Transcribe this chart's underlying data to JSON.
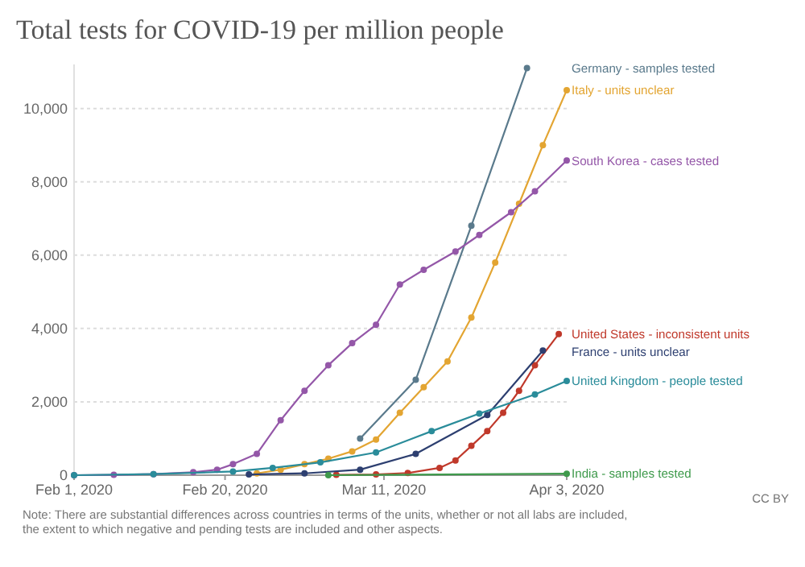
{
  "chart_data": {
    "type": "line",
    "title": "Total tests for COVID-19 per million people",
    "xlim": [
      "2020-02-01",
      "2020-04-03"
    ],
    "xticks": [
      {
        "value": "2020-02-01",
        "label": "Feb 1, 2020"
      },
      {
        "value": "2020-02-20",
        "label": "Feb 20, 2020"
      },
      {
        "value": "2020-03-11",
        "label": "Mar 11, 2020"
      },
      {
        "value": "2020-04-03",
        "label": "Apr 3, 2020"
      }
    ],
    "ylim": [
      0,
      11200
    ],
    "yticks": [
      0,
      {
        "value": 2000,
        "label": "2,000"
      },
      {
        "value": 4000,
        "label": "4,000"
      },
      {
        "value": 6000,
        "label": "6,000"
      },
      {
        "value": 8000,
        "label": "8,000"
      },
      {
        "value": 10000,
        "label": "10,000"
      }
    ],
    "grid": "y",
    "marker": "circle",
    "line_style": "solid",
    "legend": false,
    "series": [
      {
        "name": "Germany - samples tested",
        "color": "#5a7a8c",
        "x": [
          "2020-03-08",
          "2020-03-15",
          "2020-03-22",
          "2020-03-29"
        ],
        "values": [
          1000,
          2600,
          6800,
          11100
        ]
      },
      {
        "name": "Italy - units unclear",
        "color": "#e3a532",
        "x": [
          "2020-02-24",
          "2020-02-27",
          "2020-03-01",
          "2020-03-04",
          "2020-03-07",
          "2020-03-10",
          "2020-03-13",
          "2020-03-16",
          "2020-03-19",
          "2020-03-22",
          "2020-03-25",
          "2020-03-28",
          "2020-03-31",
          "2020-04-03"
        ],
        "values": [
          50,
          150,
          300,
          450,
          650,
          970,
          1700,
          2400,
          3100,
          4300,
          5800,
          7400,
          9000,
          10500
        ]
      },
      {
        "name": "South Korea - cases tested",
        "color": "#9457a8",
        "x": [
          "2020-02-01",
          "2020-02-06",
          "2020-02-11",
          "2020-02-16",
          "2020-02-19",
          "2020-02-21",
          "2020-02-24",
          "2020-02-27",
          "2020-03-01",
          "2020-03-04",
          "2020-03-07",
          "2020-03-10",
          "2020-03-13",
          "2020-03-16",
          "2020-03-20",
          "2020-03-23",
          "2020-03-27",
          "2020-03-30",
          "2020-04-03"
        ],
        "values": [
          0,
          10,
          30,
          80,
          150,
          300,
          580,
          1500,
          2300,
          3000,
          3600,
          4100,
          5200,
          5600,
          6100,
          6550,
          7170,
          7740,
          8580
        ]
      },
      {
        "name": "United States - inconsistent units",
        "color": "#c0392b",
        "x": [
          "2020-03-05",
          "2020-03-10",
          "2020-03-14",
          "2020-03-18",
          "2020-03-20",
          "2020-03-22",
          "2020-03-24",
          "2020-03-26",
          "2020-03-28",
          "2020-03-30",
          "2020-04-02"
        ],
        "values": [
          10,
          20,
          60,
          200,
          400,
          800,
          1200,
          1700,
          2300,
          3000,
          3850
        ]
      },
      {
        "name": "France - units unclear",
        "color": "#2d3f70",
        "x": [
          "2020-02-23",
          "2020-03-01",
          "2020-03-08",
          "2020-03-15",
          "2020-03-24",
          "2020-03-31"
        ],
        "values": [
          20,
          50,
          150,
          580,
          1640,
          3400
        ]
      },
      {
        "name": "United Kingdom - people tested",
        "color": "#2a8c9a",
        "x": [
          "2020-02-01",
          "2020-02-11",
          "2020-02-21",
          "2020-02-26",
          "2020-03-03",
          "2020-03-10",
          "2020-03-17",
          "2020-03-23",
          "2020-03-30",
          "2020-04-03"
        ],
        "values": [
          0,
          30,
          100,
          200,
          350,
          620,
          1200,
          1680,
          2200,
          2570
        ]
      },
      {
        "name": "India - samples tested",
        "color": "#3f9a4c",
        "x": [
          "2020-03-04",
          "2020-04-03"
        ],
        "values": [
          0,
          40
        ]
      }
    ],
    "annotations": [
      "CC BY",
      "Note: There are substantial differences across countries in terms of the units, whether or not all labs are included, the extent to which negative and pending tests are included and other aspects."
    ]
  }
}
